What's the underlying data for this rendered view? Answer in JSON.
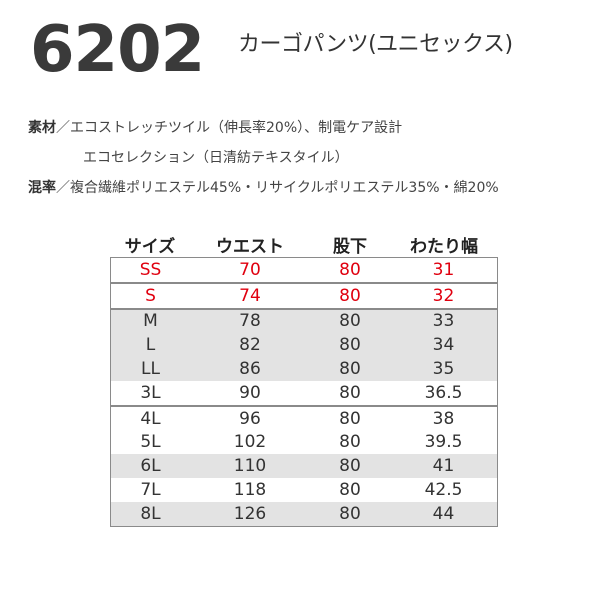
{
  "header": {
    "model_number": "6202",
    "product_name": "カーゴパンツ(ユニセックス)"
  },
  "specs": {
    "material_label": "素材",
    "material_text": "／エコストレッチツイル（伸長率20%）、制電ケア設計",
    "material_sub": "エコセレクション（日清紡テキスタイル）",
    "blend_label": "混率",
    "blend_text": "／複合繊維ポリエステル45%・リサイクルポリエステル35%・綿20%"
  },
  "size_table": {
    "headers": [
      "サイズ",
      "ウエスト",
      "股下",
      "わたり幅"
    ],
    "rows": [
      {
        "size": "SS",
        "waist": "70",
        "inseam": "80",
        "thigh": "31"
      },
      {
        "size": "S",
        "waist": "74",
        "inseam": "80",
        "thigh": "32"
      },
      {
        "size": "M",
        "waist": "78",
        "inseam": "80",
        "thigh": "33"
      },
      {
        "size": "L",
        "waist": "82",
        "inseam": "80",
        "thigh": "34"
      },
      {
        "size": "LL",
        "waist": "86",
        "inseam": "80",
        "thigh": "35"
      },
      {
        "size": "3L",
        "waist": "90",
        "inseam": "80",
        "thigh": "36.5"
      },
      {
        "size": "4L",
        "waist": "96",
        "inseam": "80",
        "thigh": "38"
      },
      {
        "size": "5L",
        "waist": "102",
        "inseam": "80",
        "thigh": "39.5"
      },
      {
        "size": "6L",
        "waist": "110",
        "inseam": "80",
        "thigh": "41"
      },
      {
        "size": "7L",
        "waist": "118",
        "inseam": "80",
        "thigh": "42.5"
      },
      {
        "size": "8L",
        "waist": "126",
        "inseam": "80",
        "thigh": "44"
      }
    ],
    "colors": {
      "highlight_red": "#e0000f",
      "shade_gray": "#e3e3e3",
      "border_gray": "#8a8a8a"
    }
  }
}
